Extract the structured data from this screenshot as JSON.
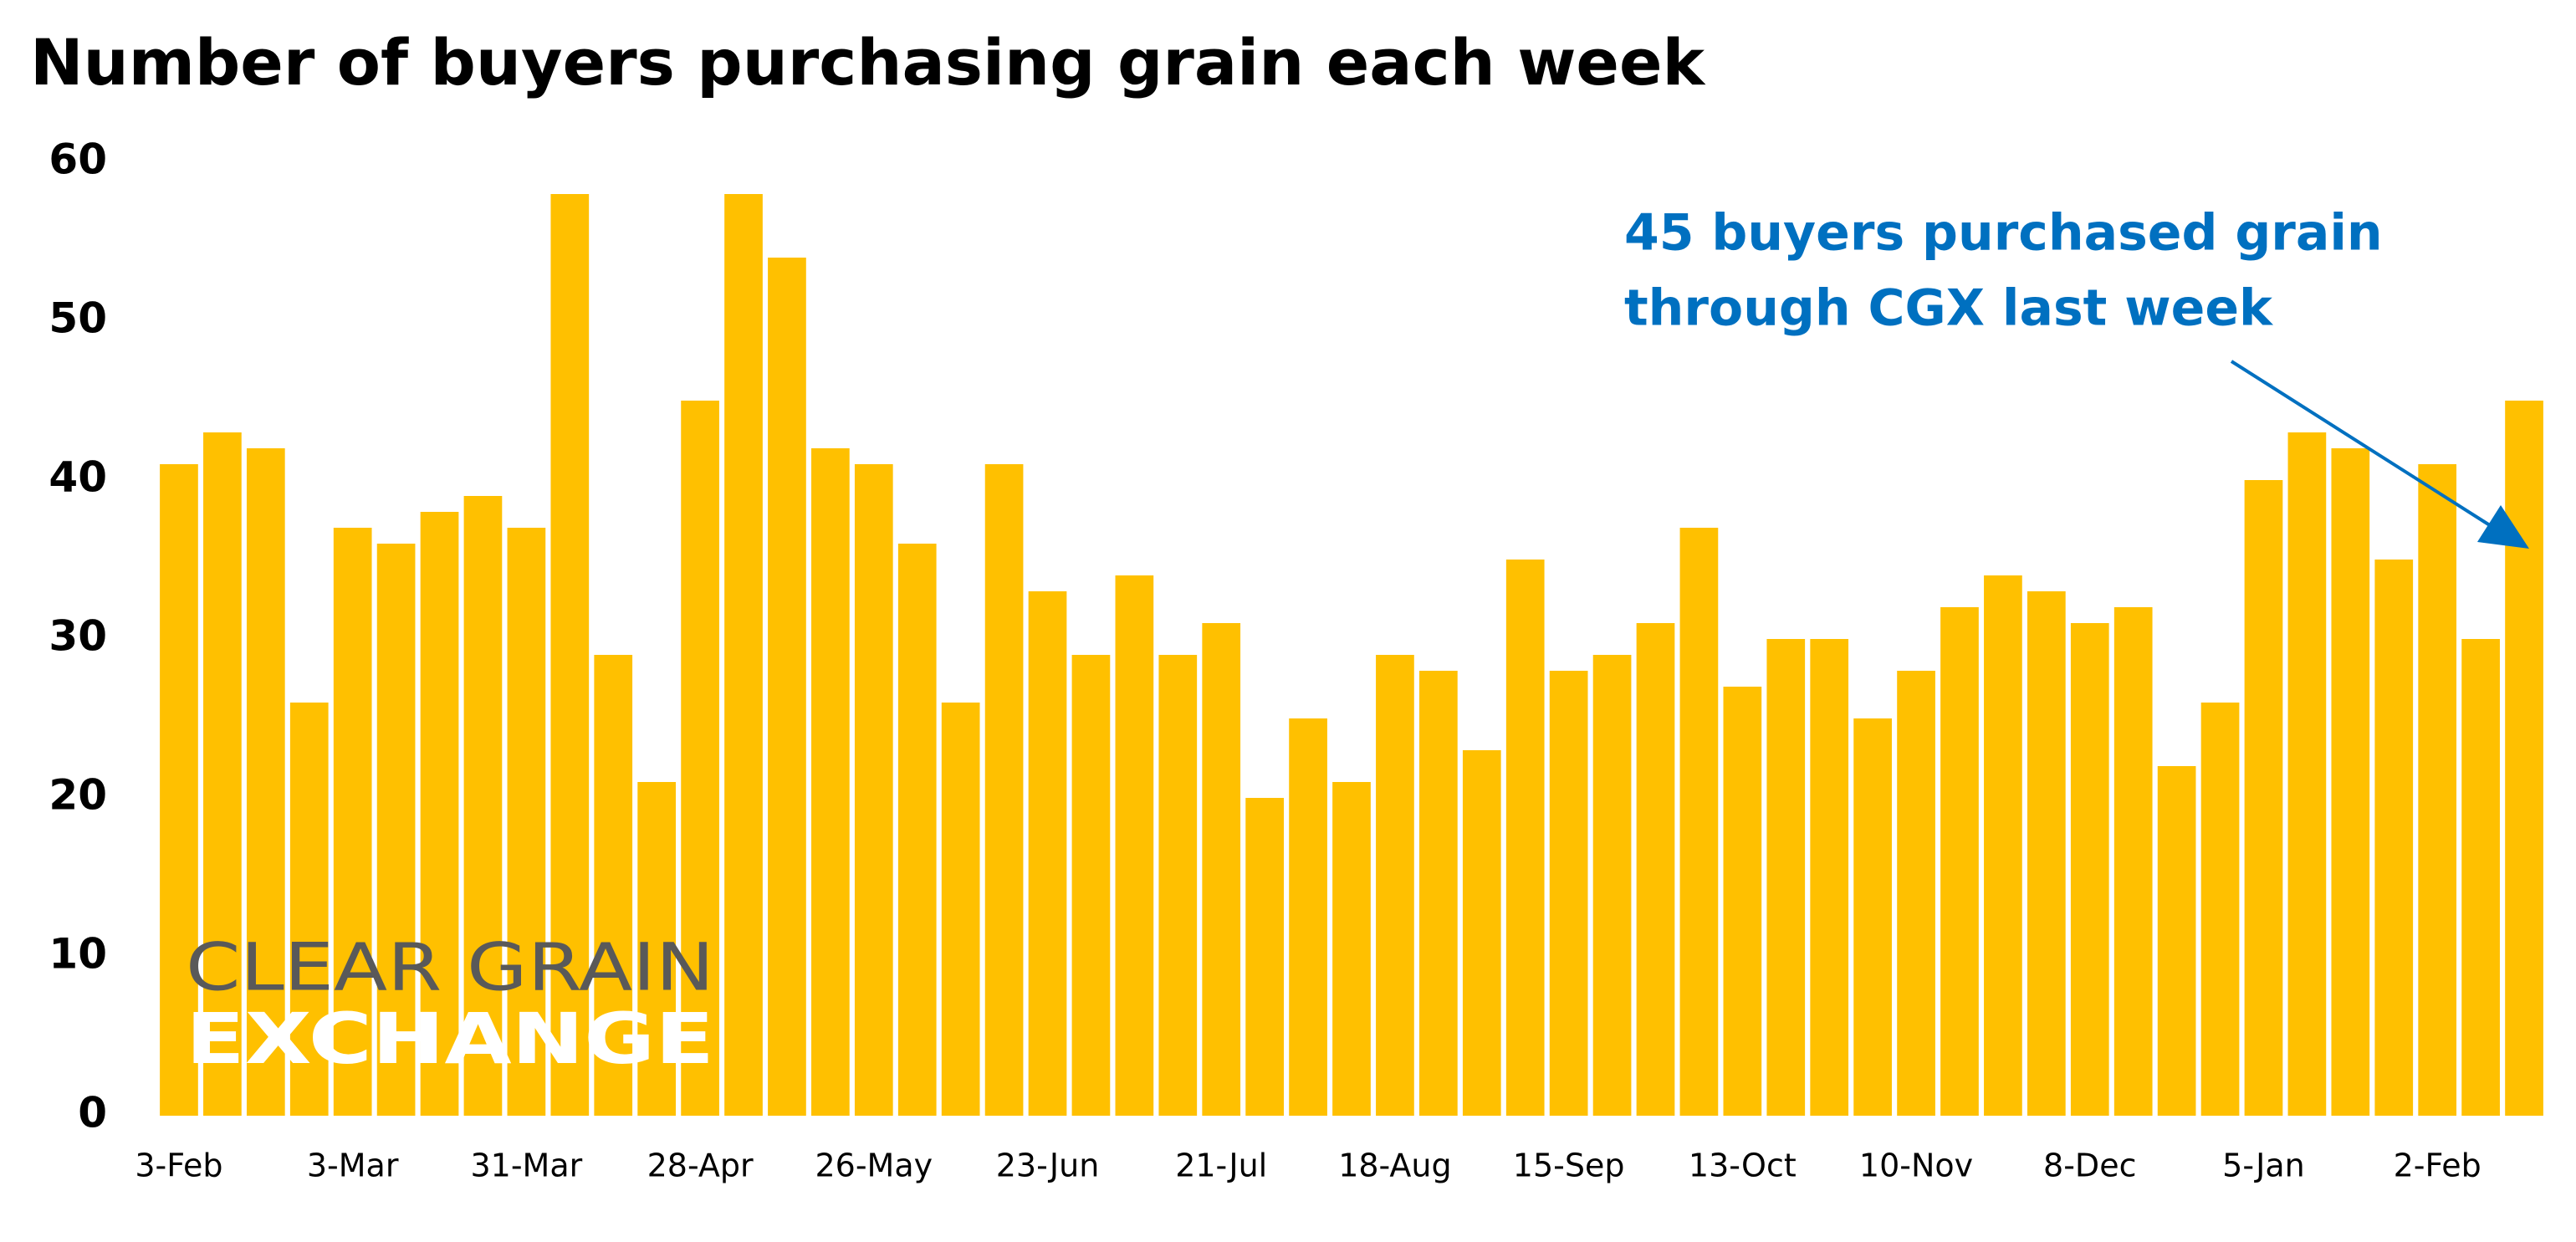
{
  "chart_data": {
    "type": "bar",
    "title": "Number of buyers purchasing grain each week",
    "categories": [
      "3-Feb",
      null,
      null,
      null,
      "3-Mar",
      null,
      null,
      null,
      "31-Mar",
      null,
      null,
      null,
      "28-Apr",
      null,
      null,
      null,
      "26-May",
      null,
      null,
      null,
      "23-Jun",
      null,
      null,
      null,
      "21-Jul",
      null,
      null,
      null,
      "18-Aug",
      null,
      null,
      null,
      "15-Sep",
      null,
      null,
      null,
      "13-Oct",
      null,
      null,
      null,
      "10-Nov",
      null,
      null,
      null,
      "8-Dec",
      null,
      null,
      null,
      "5-Jan",
      null,
      null,
      null,
      "2-Feb",
      null,
      null
    ],
    "values": [
      41,
      43,
      42,
      26,
      37,
      36,
      38,
      39,
      37,
      58,
      29,
      21,
      45,
      58,
      54,
      42,
      41,
      36,
      26,
      41,
      33,
      29,
      34,
      29,
      31,
      20,
      25,
      21,
      29,
      28,
      23,
      35,
      28,
      29,
      31,
      37,
      27,
      30,
      30,
      25,
      28,
      32,
      34,
      33,
      31,
      32,
      22,
      26,
      40,
      43,
      42,
      35,
      41,
      30,
      45
    ],
    "color": "#ffc000",
    "ylim": [
      0,
      60
    ],
    "yticks": [
      0,
      10,
      20,
      30,
      40,
      50,
      60
    ],
    "grid": false,
    "annotation": [
      "45 buyers purchased grain",
      "through CGX last week"
    ],
    "annotation_color": "#0070c0",
    "logo": [
      "CLEAR GRAIN",
      "EXCHANGE"
    ]
  }
}
